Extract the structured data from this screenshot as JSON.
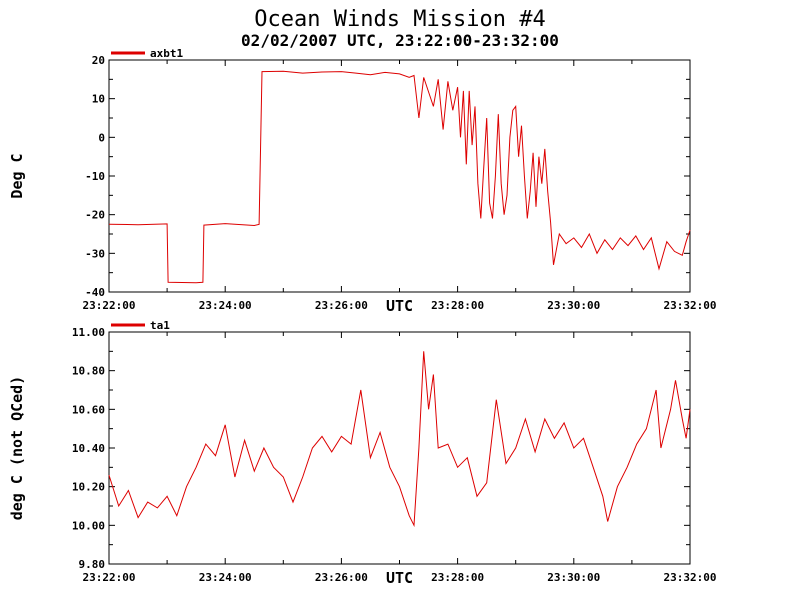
{
  "figure": {
    "title": "Ocean Winds Mission #4",
    "subtitle": "02/02/2007  UTC, 23:22:00-23:32:00"
  },
  "colors": {
    "series": "#dd0000",
    "axis": "#000000",
    "background": "#ffffff"
  },
  "chart_data": [
    {
      "type": "line",
      "xlabel": "UTC",
      "ylabel": "Deg C",
      "xlim": [
        "23:22:00",
        "23:32:00"
      ],
      "ylim": [
        -40,
        20
      ],
      "x_ticks": [
        "23:22:00",
        "23:24:00",
        "23:26:00",
        "23:28:00",
        "23:30:00",
        "23:32:00"
      ],
      "y_ticks": [
        "20",
        "10",
        "0",
        "-10",
        "-20",
        "-30",
        "-40"
      ],
      "grid": false,
      "legend_position": "top-left",
      "series": [
        {
          "name": "axbt1",
          "points": [
            [
              "23:22:00",
              -22.5
            ],
            [
              "23:22:30",
              -22.6
            ],
            [
              "23:23:00",
              -22.4
            ],
            [
              "23:23:01",
              -37.5
            ],
            [
              "23:23:30",
              -37.6
            ],
            [
              "23:23:37",
              -37.5
            ],
            [
              "23:23:38",
              -22.7
            ],
            [
              "23:24:00",
              -22.3
            ],
            [
              "23:24:30",
              -22.8
            ],
            [
              "23:24:35",
              -22.5
            ],
            [
              "23:24:38",
              17.0
            ],
            [
              "23:25:00",
              17.1
            ],
            [
              "23:25:20",
              16.6
            ],
            [
              "23:25:40",
              16.9
            ],
            [
              "23:26:00",
              17.0
            ],
            [
              "23:26:15",
              16.6
            ],
            [
              "23:26:30",
              16.2
            ],
            [
              "23:26:45",
              16.8
            ],
            [
              "23:27:00",
              16.4
            ],
            [
              "23:27:10",
              15.5
            ],
            [
              "23:27:15",
              16.0
            ],
            [
              "23:27:20",
              5.0
            ],
            [
              "23:27:25",
              15.5
            ],
            [
              "23:27:35",
              8.0
            ],
            [
              "23:27:40",
              15.0
            ],
            [
              "23:27:45",
              2.0
            ],
            [
              "23:27:50",
              14.5
            ],
            [
              "23:27:55",
              7.0
            ],
            [
              "23:28:00",
              13.0
            ],
            [
              "23:28:03",
              0.0
            ],
            [
              "23:28:06",
              12.0
            ],
            [
              "23:28:09",
              -7.0
            ],
            [
              "23:28:12",
              12.0
            ],
            [
              "23:28:15",
              -2.0
            ],
            [
              "23:28:18",
              8.0
            ],
            [
              "23:28:21",
              -12.0
            ],
            [
              "23:28:24",
              -21.0
            ],
            [
              "23:28:27",
              -8.0
            ],
            [
              "23:28:30",
              5.0
            ],
            [
              "23:28:33",
              -17.0
            ],
            [
              "23:28:36",
              -21.0
            ],
            [
              "23:28:39",
              -10.0
            ],
            [
              "23:28:42",
              6.0
            ],
            [
              "23:28:45",
              -12.0
            ],
            [
              "23:28:48",
              -20.0
            ],
            [
              "23:28:51",
              -15.0
            ],
            [
              "23:28:54",
              0.0
            ],
            [
              "23:28:57",
              7.0
            ],
            [
              "23:29:00",
              8.0
            ],
            [
              "23:29:03",
              -5.0
            ],
            [
              "23:29:06",
              3.0
            ],
            [
              "23:29:09",
              -10.0
            ],
            [
              "23:29:12",
              -21.0
            ],
            [
              "23:29:15",
              -14.0
            ],
            [
              "23:29:18",
              -4.0
            ],
            [
              "23:29:21",
              -18.0
            ],
            [
              "23:29:24",
              -5.0
            ],
            [
              "23:29:27",
              -12.0
            ],
            [
              "23:29:30",
              -3.0
            ],
            [
              "23:29:33",
              -14.0
            ],
            [
              "23:29:36",
              -22.0
            ],
            [
              "23:29:39",
              -33.0
            ],
            [
              "23:29:45",
              -25.0
            ],
            [
              "23:29:52",
              -27.5
            ],
            [
              "23:30:00",
              -26.0
            ],
            [
              "23:30:08",
              -28.5
            ],
            [
              "23:30:16",
              -25.0
            ],
            [
              "23:30:24",
              -30.0
            ],
            [
              "23:30:32",
              -26.5
            ],
            [
              "23:30:40",
              -29.0
            ],
            [
              "23:30:48",
              -26.0
            ],
            [
              "23:30:56",
              -28.0
            ],
            [
              "23:31:04",
              -25.5
            ],
            [
              "23:31:12",
              -29.0
            ],
            [
              "23:31:20",
              -26.0
            ],
            [
              "23:31:28",
              -34.0
            ],
            [
              "23:31:36",
              -27.0
            ],
            [
              "23:31:44",
              -29.5
            ],
            [
              "23:31:52",
              -30.5
            ],
            [
              "23:31:56",
              -27.0
            ],
            [
              "23:32:00",
              -24.0
            ]
          ]
        }
      ]
    },
    {
      "type": "line",
      "xlabel": "UTC",
      "ylabel": "deg C (not QCed)",
      "xlim": [
        "23:22:00",
        "23:32:00"
      ],
      "ylim": [
        9.8,
        11.0
      ],
      "x_ticks": [
        "23:22:00",
        "23:24:00",
        "23:26:00",
        "23:28:00",
        "23:30:00",
        "23:32:00"
      ],
      "y_ticks": [
        "11.00",
        "10.80",
        "10.60",
        "10.40",
        "10.20",
        "10.00",
        "9.80"
      ],
      "grid": false,
      "legend_position": "top-left",
      "series": [
        {
          "name": "ta1",
          "points": [
            [
              "23:22:00",
              10.26
            ],
            [
              "23:22:10",
              10.1
            ],
            [
              "23:22:20",
              10.18
            ],
            [
              "23:22:30",
              10.04
            ],
            [
              "23:22:40",
              10.12
            ],
            [
              "23:22:50",
              10.09
            ],
            [
              "23:23:00",
              10.15
            ],
            [
              "23:23:10",
              10.05
            ],
            [
              "23:23:20",
              10.2
            ],
            [
              "23:23:30",
              10.3
            ],
            [
              "23:23:40",
              10.42
            ],
            [
              "23:23:50",
              10.36
            ],
            [
              "23:24:00",
              10.52
            ],
            [
              "23:24:10",
              10.25
            ],
            [
              "23:24:20",
              10.44
            ],
            [
              "23:24:30",
              10.28
            ],
            [
              "23:24:40",
              10.4
            ],
            [
              "23:24:50",
              10.3
            ],
            [
              "23:25:00",
              10.25
            ],
            [
              "23:25:10",
              10.12
            ],
            [
              "23:25:20",
              10.25
            ],
            [
              "23:25:30",
              10.4
            ],
            [
              "23:25:40",
              10.46
            ],
            [
              "23:25:50",
              10.38
            ],
            [
              "23:26:00",
              10.46
            ],
            [
              "23:26:10",
              10.42
            ],
            [
              "23:26:20",
              10.7
            ],
            [
              "23:26:30",
              10.35
            ],
            [
              "23:26:40",
              10.48
            ],
            [
              "23:26:50",
              10.3
            ],
            [
              "23:27:00",
              10.2
            ],
            [
              "23:27:10",
              10.05
            ],
            [
              "23:27:15",
              10.0
            ],
            [
              "23:27:20",
              10.4
            ],
            [
              "23:27:25",
              10.9
            ],
            [
              "23:27:30",
              10.6
            ],
            [
              "23:27:35",
              10.78
            ],
            [
              "23:27:40",
              10.4
            ],
            [
              "23:27:50",
              10.42
            ],
            [
              "23:28:00",
              10.3
            ],
            [
              "23:28:10",
              10.35
            ],
            [
              "23:28:20",
              10.15
            ],
            [
              "23:28:30",
              10.22
            ],
            [
              "23:28:40",
              10.65
            ],
            [
              "23:28:50",
              10.32
            ],
            [
              "23:29:00",
              10.4
            ],
            [
              "23:29:10",
              10.55
            ],
            [
              "23:29:20",
              10.38
            ],
            [
              "23:29:30",
              10.55
            ],
            [
              "23:29:40",
              10.45
            ],
            [
              "23:29:50",
              10.53
            ],
            [
              "23:30:00",
              10.4
            ],
            [
              "23:30:10",
              10.45
            ],
            [
              "23:30:20",
              10.3
            ],
            [
              "23:30:30",
              10.15
            ],
            [
              "23:30:35",
              10.02
            ],
            [
              "23:30:45",
              10.2
            ],
            [
              "23:30:55",
              10.3
            ],
            [
              "23:31:05",
              10.42
            ],
            [
              "23:31:15",
              10.5
            ],
            [
              "23:31:25",
              10.7
            ],
            [
              "23:31:30",
              10.4
            ],
            [
              "23:31:40",
              10.6
            ],
            [
              "23:31:45",
              10.75
            ],
            [
              "23:31:52",
              10.55
            ],
            [
              "23:31:56",
              10.45
            ],
            [
              "23:32:00",
              10.6
            ]
          ]
        }
      ]
    }
  ]
}
